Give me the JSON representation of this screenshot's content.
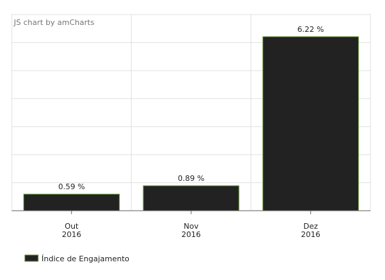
{
  "watermark": "JS chart by amCharts",
  "chart_data": {
    "type": "bar",
    "categories": [
      [
        "Out",
        "2016"
      ],
      [
        "Nov",
        "2016"
      ],
      [
        "Dez",
        "2016"
      ]
    ],
    "values": [
      0.59,
      0.89,
      6.22
    ],
    "data_labels": [
      "0.59 %",
      "0.89 %",
      "6.22 %"
    ],
    "series": [
      {
        "name": "Índice de Engajamento",
        "values": [
          0.59,
          0.89,
          6.22
        ]
      }
    ],
    "ylim": [
      0,
      6.22
    ],
    "grid": true,
    "legend_position": "bottom-left",
    "colors": {
      "bar_fill": "#222222",
      "bar_stroke": "#5a8a2a",
      "grid": "#e0e0e0",
      "axis": "#666666"
    }
  }
}
